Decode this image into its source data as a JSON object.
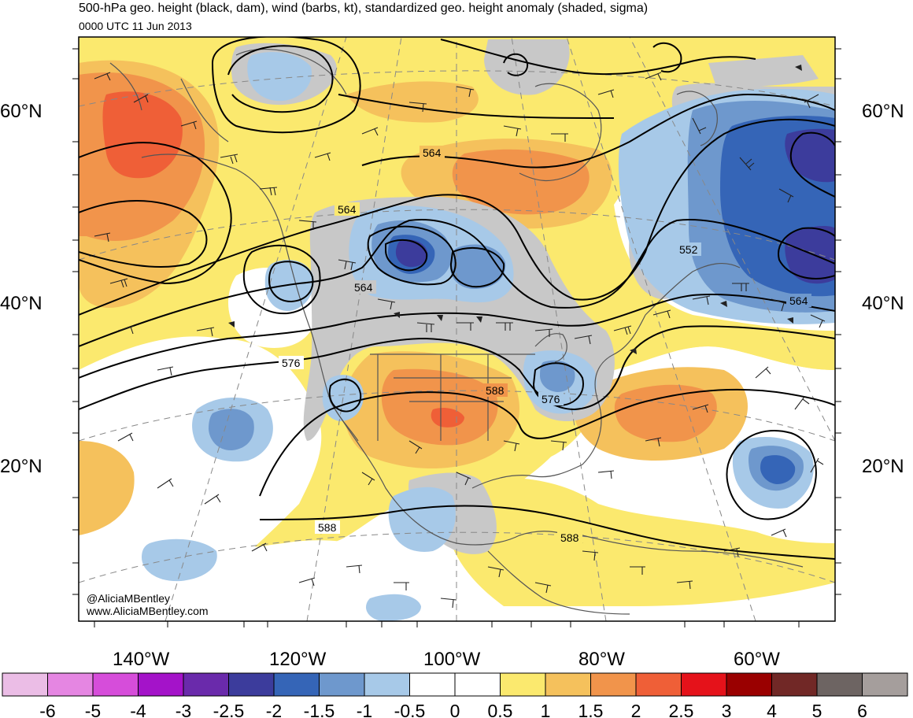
{
  "title": "500-hPa geo. height (black, dam), wind (barbs, kt), standardized geo. height anomaly (shaded, sigma)",
  "subtitle": "0000 UTC 11 Jun 2013",
  "credits": [
    "@AliciaMBentley",
    "www.AliciaMBentley.com"
  ],
  "latitude_labels": [
    {
      "label": "60°N",
      "lat": 60
    },
    {
      "label": "40°N",
      "lat": 40
    },
    {
      "label": "20°N",
      "lat": 20
    }
  ],
  "longitude_labels": [
    {
      "label": "140°W",
      "lon": -140
    },
    {
      "label": "120°W",
      "lon": -120
    },
    {
      "label": "100°W",
      "lon": -100
    },
    {
      "label": "80°W",
      "lon": -80
    },
    {
      "label": "60°W",
      "lon": -60
    }
  ],
  "contour_labels": [
    {
      "text": "564",
      "region": "hudson-bay"
    },
    {
      "text": "564",
      "region": "pacific-northwest"
    },
    {
      "text": "564",
      "region": "northern-rockies"
    },
    {
      "text": "552",
      "region": "labrador-sea"
    },
    {
      "text": "564",
      "region": "north-atlantic"
    },
    {
      "text": "576",
      "region": "california"
    },
    {
      "text": "588",
      "region": "southern-plains"
    },
    {
      "text": "576",
      "region": "ohio-valley"
    },
    {
      "text": "588",
      "region": "eastern-pacific"
    },
    {
      "text": "588",
      "region": "caribbean"
    }
  ],
  "colorbar": {
    "colors": [
      "#ebbde6",
      "#e586e2",
      "#d64dda",
      "#a413c9",
      "#6a2aab",
      "#3c3c9c",
      "#3565b7",
      "#6e98cd",
      "#a7c9e8",
      "#ffffff",
      "#ffffff",
      "#fbe96e",
      "#f5c15c",
      "#f1944b",
      "#ef5f37",
      "#e5121a",
      "#9a0000",
      "#712826",
      "#6d6462",
      "#a59e9c"
    ],
    "ticks": [
      "-6",
      "-5",
      "-4",
      "-3",
      "-2.5",
      "-2",
      "-1.5",
      "-1",
      "-0.5",
      "0",
      "0.5",
      "1",
      "1.5",
      "2",
      "2.5",
      "3",
      "4",
      "5",
      "6"
    ]
  },
  "anomaly_colors": {
    "land_gray": "#c8c8c8",
    "pos_0_5": "#fbe96e",
    "pos_1": "#f5c15c",
    "pos_1_5": "#f1944b",
    "pos_2": "#ef5f37",
    "neg_0_5": "#a7c9e8",
    "neg_1": "#6e98cd",
    "neg_1_5": "#3565b7",
    "neg_2": "#3c3c9c"
  }
}
